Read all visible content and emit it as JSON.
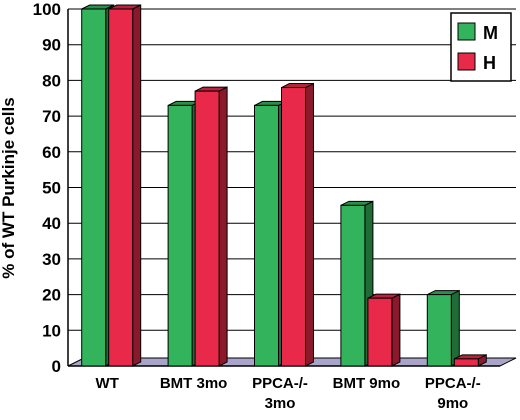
{
  "chart_data": {
    "type": "bar",
    "title": "",
    "xlabel": "",
    "ylabel": "% of WT Purkinje cells",
    "ylim": [
      0,
      100
    ],
    "yticks": [
      0,
      10,
      20,
      30,
      40,
      50,
      60,
      70,
      80,
      90,
      100
    ],
    "grid": true,
    "legend_position": "top-right",
    "categories": [
      [
        "WT"
      ],
      [
        "BMT 3mo"
      ],
      [
        "PPCA-/-",
        "3mo"
      ],
      [
        "BMT 9mo"
      ],
      [
        "PPCA-/-",
        "9mo"
      ]
    ],
    "series": [
      {
        "name": "M",
        "color": "#33b45c",
        "values": [
          100,
          73,
          73,
          45,
          20
        ]
      },
      {
        "name": "H",
        "color": "#e8294a",
        "values": [
          100,
          77,
          78,
          19,
          2
        ]
      }
    ],
    "colors": {
      "floor": "#a9a4c9",
      "grid": "#000000"
    }
  }
}
